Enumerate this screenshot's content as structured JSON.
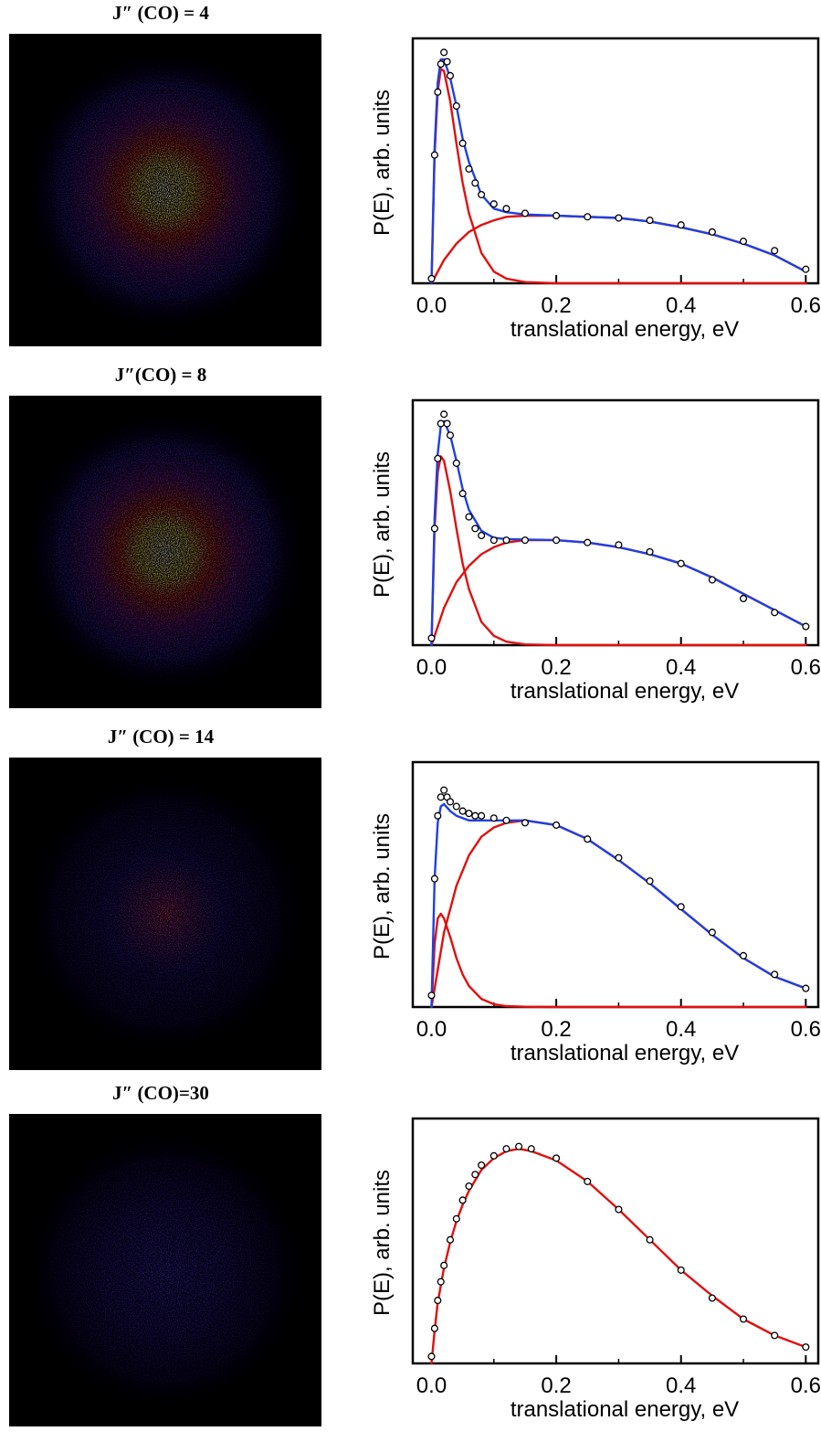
{
  "panels": [
    {
      "title": "J″ (CO) = 4"
    },
    {
      "title": "J″(CO) = 8"
    },
    {
      "title": "J″ (CO) = 14"
    },
    {
      "title": "J″ (CO)=30"
    }
  ],
  "colors": {
    "background_image": "#000000",
    "image_core": "#fffde0",
    "image_mid": "#ff3a3a",
    "image_outer": "#3a22e0",
    "fast_component_fit": "#e01010",
    "slow_component_fit": "#e01010",
    "total_fit": "#2040e0",
    "data_points": "#000000"
  },
  "images": [
    {
      "name": "velocity-map-image-1",
      "peak_intensity": 1.0
    },
    {
      "name": "velocity-map-image-2",
      "peak_intensity": 0.85
    },
    {
      "name": "velocity-map-image-3",
      "peak_intensity": 0.45
    },
    {
      "name": "velocity-map-image-4",
      "peak_intensity": 0.3
    }
  ],
  "chart_data": [
    {
      "type": "line",
      "xlabel": "translational energy, eV",
      "ylabel": "P(E), arb. units",
      "xlim": [
        -0.03,
        0.62
      ],
      "ylim": [
        0,
        1.05
      ],
      "xticks": [
        "0.0",
        "0.2",
        "0.4",
        "0.6"
      ],
      "xtick_values": [
        0.0,
        0.2,
        0.4,
        0.6
      ],
      "series": [
        {
          "role": "data",
          "style": "open-circles",
          "x": [
            0.0,
            0.005,
            0.01,
            0.015,
            0.02,
            0.025,
            0.03,
            0.04,
            0.05,
            0.06,
            0.07,
            0.08,
            0.1,
            0.12,
            0.15,
            0.2,
            0.25,
            0.3,
            0.35,
            0.4,
            0.45,
            0.5,
            0.55,
            0.6
          ],
          "y": [
            0.02,
            0.55,
            0.82,
            0.94,
            0.99,
            0.95,
            0.89,
            0.76,
            0.6,
            0.49,
            0.43,
            0.38,
            0.34,
            0.32,
            0.3,
            0.29,
            0.285,
            0.28,
            0.27,
            0.25,
            0.22,
            0.18,
            0.14,
            0.06
          ]
        },
        {
          "role": "fast-fit",
          "color": "#e01010",
          "x": [
            0.0,
            0.005,
            0.01,
            0.015,
            0.02,
            0.03,
            0.04,
            0.05,
            0.06,
            0.08,
            0.1,
            0.12,
            0.15,
            0.2,
            0.3,
            0.6
          ],
          "y": [
            0.0,
            0.55,
            0.82,
            0.92,
            0.91,
            0.78,
            0.6,
            0.43,
            0.3,
            0.13,
            0.05,
            0.02,
            0.005,
            0.0,
            0.0,
            0.0
          ]
        },
        {
          "role": "slow-fit",
          "color": "#e01010",
          "x": [
            0.0,
            0.02,
            0.04,
            0.06,
            0.08,
            0.1,
            0.12,
            0.15,
            0.2,
            0.25,
            0.3,
            0.35,
            0.4,
            0.45,
            0.5,
            0.55,
            0.6
          ],
          "y": [
            0.0,
            0.1,
            0.17,
            0.22,
            0.25,
            0.27,
            0.285,
            0.29,
            0.29,
            0.285,
            0.28,
            0.265,
            0.24,
            0.21,
            0.17,
            0.12,
            0.05
          ]
        },
        {
          "role": "total-fit",
          "color": "#2040e0",
          "x": [
            0.0,
            0.005,
            0.01,
            0.015,
            0.02,
            0.03,
            0.04,
            0.05,
            0.06,
            0.08,
            0.1,
            0.12,
            0.15,
            0.2,
            0.25,
            0.3,
            0.35,
            0.4,
            0.45,
            0.5,
            0.55,
            0.6
          ],
          "y": [
            0.0,
            0.58,
            0.86,
            0.96,
            0.96,
            0.88,
            0.76,
            0.62,
            0.52,
            0.38,
            0.32,
            0.305,
            0.295,
            0.29,
            0.285,
            0.28,
            0.265,
            0.24,
            0.21,
            0.17,
            0.12,
            0.05
          ]
        }
      ]
    },
    {
      "type": "line",
      "xlabel": "translational energy, eV",
      "ylabel": "P(E), arb. units",
      "xlim": [
        -0.03,
        0.62
      ],
      "ylim": [
        0,
        1.05
      ],
      "xticks": [
        "0.0",
        "0.2",
        "0.4",
        "0.6"
      ],
      "xtick_values": [
        0.0,
        0.2,
        0.4,
        0.6
      ],
      "series": [
        {
          "role": "data",
          "style": "open-circles",
          "x": [
            0.0,
            0.005,
            0.01,
            0.015,
            0.02,
            0.025,
            0.03,
            0.04,
            0.05,
            0.06,
            0.07,
            0.08,
            0.1,
            0.12,
            0.15,
            0.2,
            0.25,
            0.3,
            0.35,
            0.4,
            0.45,
            0.5,
            0.55,
            0.6
          ],
          "y": [
            0.03,
            0.5,
            0.8,
            0.95,
            0.99,
            0.95,
            0.9,
            0.78,
            0.65,
            0.55,
            0.5,
            0.47,
            0.45,
            0.45,
            0.45,
            0.45,
            0.44,
            0.43,
            0.4,
            0.35,
            0.28,
            0.2,
            0.14,
            0.08
          ]
        },
        {
          "role": "fast-fit",
          "color": "#e01010",
          "x": [
            0.0,
            0.005,
            0.01,
            0.015,
            0.02,
            0.03,
            0.04,
            0.05,
            0.06,
            0.08,
            0.1,
            0.12,
            0.15,
            0.2,
            0.3,
            0.6
          ],
          "y": [
            0.0,
            0.5,
            0.74,
            0.81,
            0.79,
            0.66,
            0.5,
            0.35,
            0.24,
            0.1,
            0.04,
            0.015,
            0.003,
            0.0,
            0.0,
            0.0
          ]
        },
        {
          "role": "slow-fit",
          "color": "#e01010",
          "x": [
            0.0,
            0.02,
            0.04,
            0.06,
            0.08,
            0.1,
            0.12,
            0.15,
            0.2,
            0.25,
            0.3,
            0.35,
            0.4,
            0.45,
            0.5,
            0.55,
            0.6
          ],
          "y": [
            0.0,
            0.16,
            0.27,
            0.34,
            0.39,
            0.42,
            0.44,
            0.45,
            0.45,
            0.44,
            0.42,
            0.39,
            0.35,
            0.29,
            0.22,
            0.15,
            0.08
          ]
        },
        {
          "role": "total-fit",
          "color": "#2040e0",
          "x": [
            0.0,
            0.005,
            0.01,
            0.015,
            0.02,
            0.03,
            0.04,
            0.05,
            0.06,
            0.08,
            0.1,
            0.12,
            0.15,
            0.2,
            0.25,
            0.3,
            0.35,
            0.4,
            0.45,
            0.5,
            0.55,
            0.6
          ],
          "y": [
            0.0,
            0.55,
            0.82,
            0.94,
            0.96,
            0.9,
            0.79,
            0.67,
            0.58,
            0.49,
            0.46,
            0.455,
            0.453,
            0.45,
            0.44,
            0.42,
            0.39,
            0.35,
            0.29,
            0.22,
            0.15,
            0.08
          ]
        }
      ]
    },
    {
      "type": "line",
      "xlabel": "translational energy, eV",
      "ylabel": "P(E), arb. units",
      "xlim": [
        -0.03,
        0.62
      ],
      "ylim": [
        0,
        1.05
      ],
      "xticks": [
        "0.0",
        "0.2",
        "0.4",
        "0.6"
      ],
      "xtick_values": [
        0.0,
        0.2,
        0.4,
        0.6
      ],
      "series": [
        {
          "role": "data",
          "style": "open-circles",
          "x": [
            0.0,
            0.005,
            0.01,
            0.015,
            0.02,
            0.025,
            0.03,
            0.04,
            0.05,
            0.06,
            0.07,
            0.08,
            0.1,
            0.12,
            0.15,
            0.2,
            0.25,
            0.3,
            0.35,
            0.4,
            0.45,
            0.5,
            0.55,
            0.6
          ],
          "y": [
            0.05,
            0.55,
            0.82,
            0.9,
            0.93,
            0.9,
            0.88,
            0.86,
            0.84,
            0.83,
            0.82,
            0.82,
            0.81,
            0.8,
            0.79,
            0.78,
            0.72,
            0.64,
            0.54,
            0.43,
            0.32,
            0.22,
            0.14,
            0.08
          ]
        },
        {
          "role": "fast-fit",
          "color": "#e01010",
          "x": [
            0.0,
            0.005,
            0.01,
            0.015,
            0.02,
            0.03,
            0.04,
            0.05,
            0.06,
            0.08,
            0.1,
            0.12,
            0.15,
            0.2,
            0.3,
            0.6
          ],
          "y": [
            0.0,
            0.27,
            0.38,
            0.4,
            0.38,
            0.3,
            0.21,
            0.14,
            0.09,
            0.035,
            0.012,
            0.004,
            0.001,
            0.0,
            0.0,
            0.0
          ]
        },
        {
          "role": "slow-fit",
          "color": "#e01010",
          "x": [
            0.0,
            0.02,
            0.04,
            0.06,
            0.08,
            0.1,
            0.12,
            0.15,
            0.2,
            0.25,
            0.3,
            0.35,
            0.4,
            0.45,
            0.5,
            0.55,
            0.6
          ],
          "y": [
            0.0,
            0.32,
            0.52,
            0.65,
            0.73,
            0.77,
            0.79,
            0.8,
            0.78,
            0.72,
            0.63,
            0.53,
            0.42,
            0.31,
            0.21,
            0.13,
            0.08
          ]
        },
        {
          "role": "total-fit",
          "color": "#2040e0",
          "x": [
            0.0,
            0.005,
            0.01,
            0.015,
            0.02,
            0.03,
            0.04,
            0.05,
            0.06,
            0.08,
            0.1,
            0.12,
            0.15,
            0.2,
            0.25,
            0.3,
            0.35,
            0.4,
            0.45,
            0.5,
            0.55,
            0.6
          ],
          "y": [
            0.0,
            0.55,
            0.79,
            0.86,
            0.87,
            0.84,
            0.82,
            0.81,
            0.8,
            0.8,
            0.8,
            0.8,
            0.8,
            0.78,
            0.72,
            0.63,
            0.53,
            0.42,
            0.31,
            0.21,
            0.13,
            0.08
          ]
        }
      ]
    },
    {
      "type": "line",
      "xlabel": "translational energy, eV",
      "ylabel": "P(E), arb. units",
      "xlim": [
        -0.03,
        0.62
      ],
      "ylim": [
        0,
        1.05
      ],
      "xticks": [
        "0.0",
        "0.2",
        "0.4",
        "0.6"
      ],
      "xtick_values": [
        0.0,
        0.2,
        0.4,
        0.6
      ],
      "series": [
        {
          "role": "data",
          "style": "open-circles",
          "x": [
            0.0,
            0.005,
            0.01,
            0.015,
            0.02,
            0.03,
            0.04,
            0.05,
            0.06,
            0.07,
            0.08,
            0.1,
            0.12,
            0.14,
            0.16,
            0.2,
            0.25,
            0.3,
            0.35,
            0.4,
            0.45,
            0.5,
            0.55,
            0.6
          ],
          "y": [
            0.03,
            0.15,
            0.27,
            0.35,
            0.42,
            0.53,
            0.62,
            0.7,
            0.76,
            0.81,
            0.85,
            0.89,
            0.92,
            0.93,
            0.92,
            0.88,
            0.78,
            0.66,
            0.53,
            0.4,
            0.28,
            0.19,
            0.12,
            0.07
          ]
        },
        {
          "role": "fit",
          "color": "#e01010",
          "x": [
            0.0,
            0.005,
            0.01,
            0.02,
            0.03,
            0.04,
            0.05,
            0.06,
            0.08,
            0.1,
            0.12,
            0.14,
            0.16,
            0.2,
            0.25,
            0.3,
            0.35,
            0.4,
            0.45,
            0.5,
            0.55,
            0.6
          ],
          "y": [
            0.0,
            0.14,
            0.26,
            0.41,
            0.52,
            0.61,
            0.68,
            0.74,
            0.83,
            0.88,
            0.91,
            0.92,
            0.91,
            0.87,
            0.78,
            0.66,
            0.53,
            0.4,
            0.29,
            0.19,
            0.12,
            0.07
          ]
        }
      ]
    }
  ]
}
